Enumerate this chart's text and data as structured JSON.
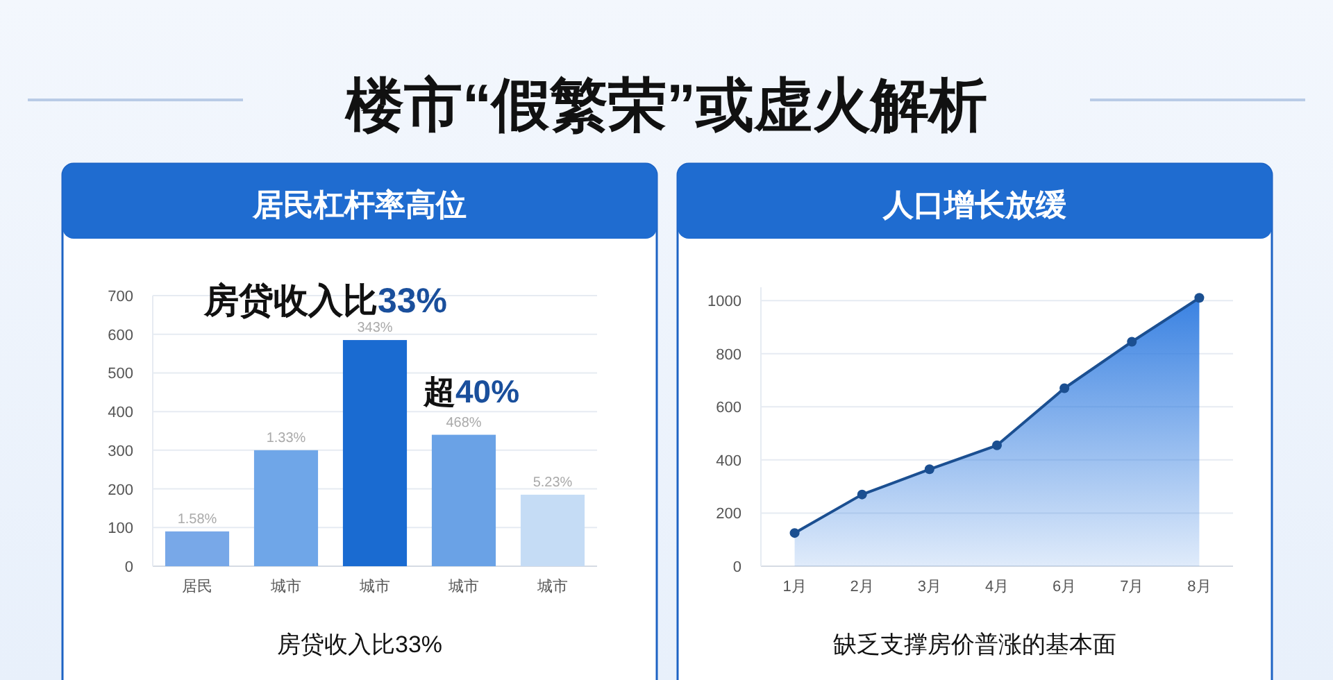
{
  "chart_data": [
    {
      "type": "bar",
      "title": "居民杠杆率高位",
      "categories": [
        "居民",
        "城市",
        "城市",
        "城市",
        "城市"
      ],
      "values": [
        90,
        300,
        585,
        340,
        185
      ],
      "colors": [
        "#78a8e8",
        "#6fa6e8",
        "#1a6bd1",
        "#6aa2e6",
        "#c5dcf5"
      ],
      "ylim": [
        0,
        700
      ],
      "yticks": [
        0,
        100,
        200,
        300,
        400,
        500,
        600,
        700
      ],
      "grid": "y",
      "annotations": [
        "楼市“假繁荣”或虚火解析",
        "房贷收入比33%",
        "超40%",
        "房贷收入比33%",
        "1.58%",
        "1.33%",
        "343%",
        "468%",
        "5.23%"
      ]
    },
    {
      "type": "area",
      "title": "人口增长放缓",
      "categories": [
        "1月",
        "2月",
        "3月",
        "4月",
        "6月",
        "7月",
        "8月"
      ],
      "series": [
        {
          "color": "#1b4f91",
          "values": [
            125,
            270,
            365,
            455,
            670,
            845,
            1010
          ]
        }
      ],
      "ylim": [
        0,
        1050
      ],
      "yticks": [
        0,
        200,
        400,
        600,
        800,
        1000
      ],
      "grid": "y",
      "marker": "circle",
      "annotations": [
        "缺乏支撑房价普涨的基本面"
      ]
    }
  ]
}
